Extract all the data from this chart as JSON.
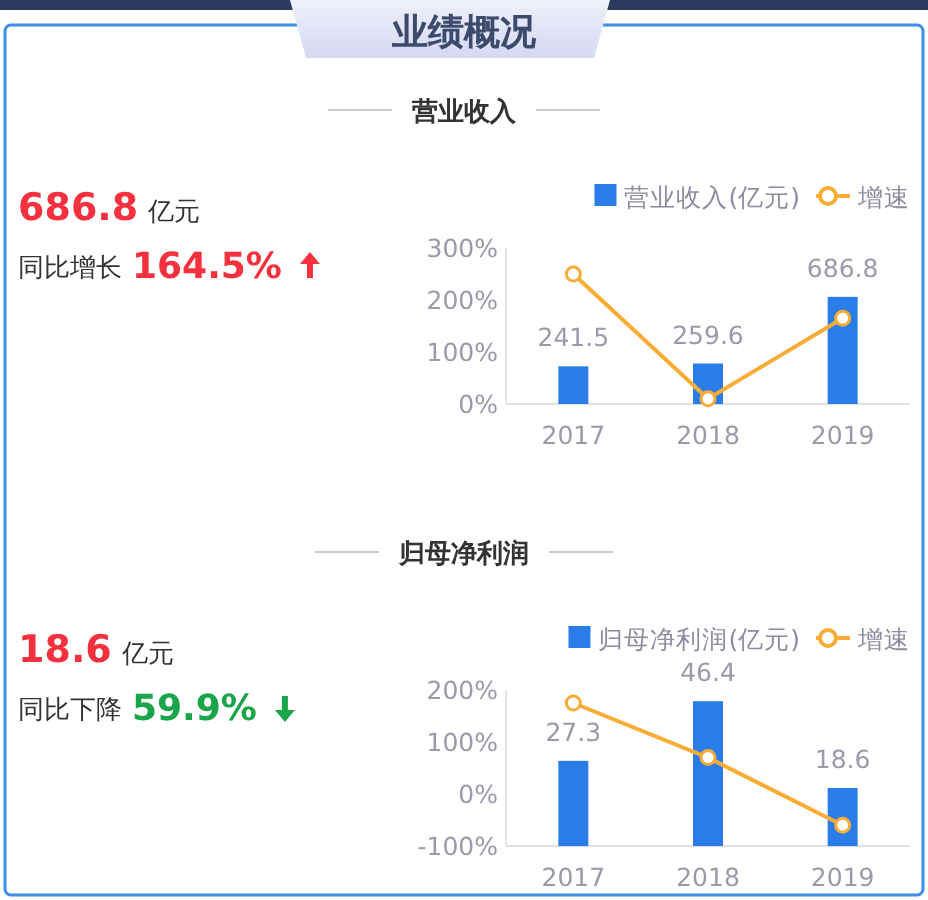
{
  "chart_data": [
    {
      "type": "other",
      "title": "业绩概况"
    },
    {
      "type": "other",
      "title": "营业收入",
      "annotations": [
        "686.8",
        "亿元",
        "同比增长",
        "164.5%"
      ],
      "colors": [
        "#f5313f",
        "#f5313f"
      ]
    },
    {
      "type": "bar",
      "categories": [
        "2017",
        "2018",
        "2019"
      ],
      "series": [
        {
          "name": "营业收入(亿元)",
          "type": "bar",
          "axis": "y2",
          "color": "#2a7de9",
          "values": [
            241.5,
            259.6,
            686.8
          ],
          "value_labels": [
            "241.5",
            "259.6",
            "686.8"
          ]
        },
        {
          "name": "增速",
          "type": "line",
          "color": "#f9ac36",
          "values": [
            250,
            10,
            165
          ]
        }
      ],
      "ylim": [
        0,
        300
      ],
      "yticks": [
        {
          "value": 0,
          "label": "0%"
        },
        {
          "value": 100,
          "label": "100%"
        },
        {
          "value": 200,
          "label": "200%"
        },
        {
          "value": 300,
          "label": "300%"
        }
      ],
      "legend": "top right",
      "marker": "circle"
    },
    {
      "type": "other",
      "title": "归母净利润",
      "annotations": [
        "18.6",
        "亿元",
        "同比下降",
        "59.9%"
      ],
      "colors": [
        "#f5313f",
        "#1aa54a"
      ]
    },
    {
      "type": "bar",
      "categories": [
        "2017",
        "2018",
        "2019"
      ],
      "series": [
        {
          "name": "归母净利润(亿元)",
          "type": "bar",
          "axis": "y2",
          "color": "#2a7de9",
          "values": [
            27.3,
            46.4,
            18.6
          ],
          "value_labels": [
            "27.3",
            "46.4",
            "18.6"
          ]
        },
        {
          "name": "增速",
          "type": "line",
          "color": "#f9ac36",
          "values": [
            175,
            70,
            -60
          ]
        }
      ],
      "ylim": [
        -100,
        200
      ],
      "yticks": [
        {
          "value": -100,
          "label": "-100%"
        },
        {
          "value": 0,
          "label": "0%"
        },
        {
          "value": 100,
          "label": "100%"
        },
        {
          "value": 200,
          "label": "200%"
        }
      ],
      "legend": "top right",
      "marker": "circle"
    }
  ]
}
